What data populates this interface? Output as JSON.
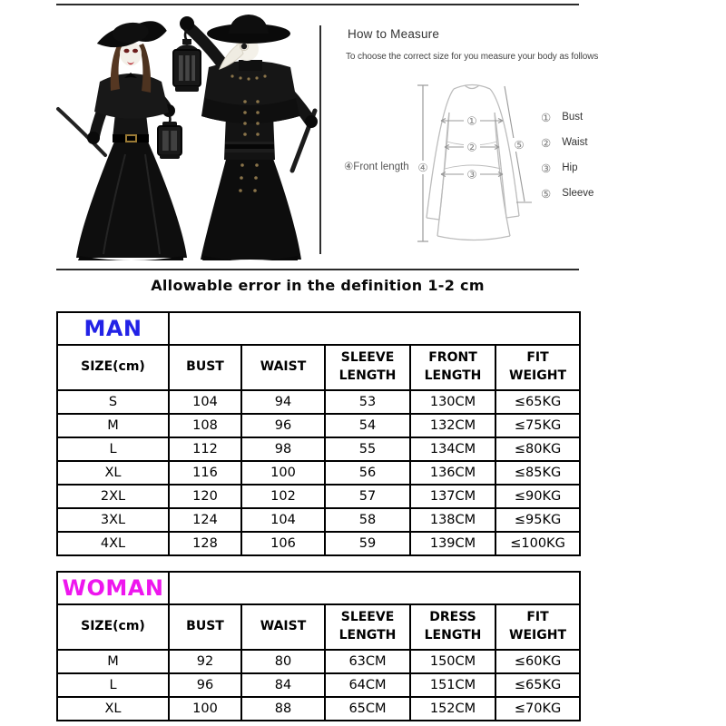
{
  "page": {
    "tolerance_note": "Allowable error in the definition 1-2 cm"
  },
  "measure": {
    "heading": "How to Measure",
    "subheading": "To choose the correct size for you measure your body as follows",
    "front_length_label": "④Front length",
    "front_length_marker": "④",
    "diagram_markers": {
      "bust": "①",
      "waist": "②",
      "hip": "③",
      "sleeve": "⑤"
    },
    "legend": [
      {
        "num": "①",
        "label": "Bust"
      },
      {
        "num": "②",
        "label": "Waist"
      },
      {
        "num": "③",
        "label": "Hip"
      },
      {
        "num": "⑤",
        "label": "Sleeve"
      }
    ]
  },
  "tables": [
    {
      "group": "MAN",
      "group_color": "#2222e6",
      "headers": [
        "SIZE(cm)",
        "BUST",
        "WAIST",
        "SLEEVE\nLENGTH",
        "FRONT\nLENGTH",
        "FIT\nWEIGHT"
      ],
      "rows": [
        [
          "S",
          "104",
          "94",
          "53",
          "130CM",
          "≤65KG"
        ],
        [
          "M",
          "108",
          "96",
          "54",
          "132CM",
          "≤75KG"
        ],
        [
          "L",
          "112",
          "98",
          "55",
          "134CM",
          "≤80KG"
        ],
        [
          "XL",
          "116",
          "100",
          "56",
          "136CM",
          "≤85KG"
        ],
        [
          "2XL",
          "120",
          "102",
          "57",
          "137CM",
          "≤90KG"
        ],
        [
          "3XL",
          "124",
          "104",
          "58",
          "138CM",
          "≤95KG"
        ],
        [
          "4XL",
          "128",
          "106",
          "59",
          "139CM",
          "≤100KG"
        ]
      ]
    },
    {
      "group": "WOMAN",
      "group_color": "#ee16ee",
      "headers": [
        "SIZE(cm)",
        "BUST",
        "WAIST",
        "SLEEVE\nLENGTH",
        "DRESS\nLENGTH",
        "FIT\nWEIGHT"
      ],
      "rows": [
        [
          "M",
          "92",
          "80",
          "63CM",
          "150CM",
          "≤60KG"
        ],
        [
          "L",
          "96",
          "84",
          "64CM",
          "151CM",
          "≤65KG"
        ],
        [
          "XL",
          "100",
          "88",
          "65CM",
          "152CM",
          "≤70KG"
        ]
      ]
    }
  ]
}
